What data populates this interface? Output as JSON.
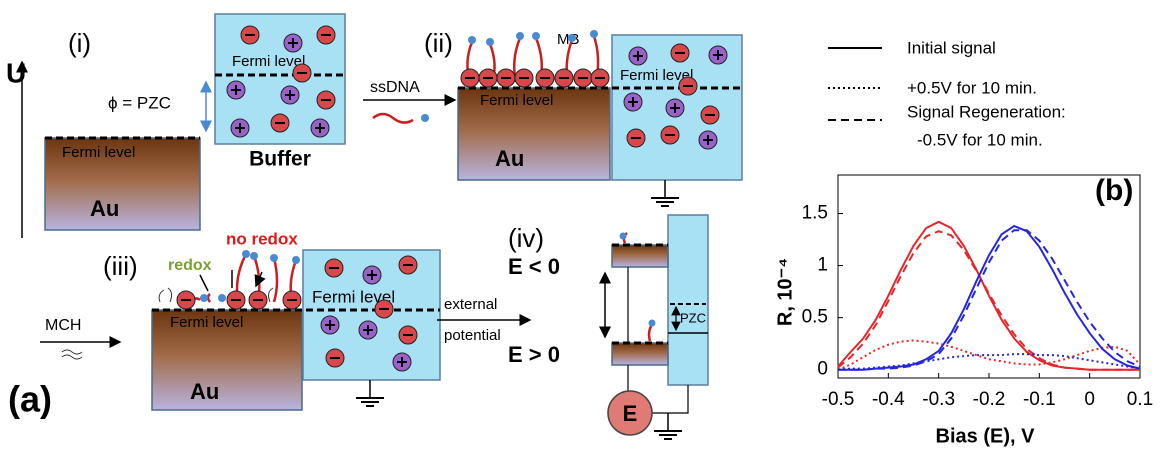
{
  "diagram": {
    "label": "(a)",
    "axis": "U",
    "step_i": {
      "label": "(i)",
      "metal": "Au",
      "metal_fermi": "Fermi level",
      "buffer": "Buffer",
      "buffer_fermi": "Fermi level",
      "gap": "ϕ = PZC"
    },
    "arrow_1": "ssDNA",
    "step_ii": {
      "label": "(ii)",
      "probe": "MB",
      "metal": "Au",
      "metal_fermi": "Fermi level",
      "buffer_fermi": "Fermi level"
    },
    "arrow_2": "MCH",
    "step_iii": {
      "label": "(iii)",
      "redox": "redox",
      "no_redox": "no redox",
      "metal": "Au",
      "metal_fermi": "Fermi level",
      "buffer_fermi": "Fermi level"
    },
    "arrow_3": [
      "external",
      "potential"
    ],
    "step_iv": {
      "label": "(iv)",
      "negative": "E < 0",
      "positive": "E > 0",
      "gap": "PZC",
      "source": "E"
    }
  },
  "chart_data": {
    "type": "line",
    "label": "(b)",
    "x_label": "Bias (E), V",
    "y_label": "R, 10⁻⁴",
    "xlim": [
      -0.5,
      0.1
    ],
    "ylim": [
      -0.08,
      1.87
    ],
    "xticks": [
      -0.5,
      -0.4,
      -0.3,
      -0.2,
      -0.1,
      0,
      0.1
    ],
    "yticks": [
      0,
      0.5,
      1,
      1.5
    ],
    "legend": [
      {
        "name": "Initial signal",
        "dash": "solid"
      },
      {
        "name": "+0.5V for 10 min.",
        "dash": "dotted"
      },
      {
        "name": [
          "Signal Regeneration:",
          "-0.5V for 10 min."
        ],
        "dash": "dashed"
      }
    ],
    "x": [
      -0.5,
      -0.475,
      -0.45,
      -0.425,
      -0.4,
      -0.375,
      -0.35,
      -0.325,
      -0.3,
      -0.275,
      -0.25,
      -0.225,
      -0.2,
      -0.175,
      -0.15,
      -0.125,
      -0.1,
      -0.075,
      -0.05,
      -0.025,
      0,
      0.025,
      0.05,
      0.075,
      0.1
    ],
    "series": [
      {
        "color": "#e8262a",
        "dash": "solid",
        "values": [
          0.03,
          0.17,
          0.3,
          0.48,
          0.71,
          0.96,
          1.19,
          1.36,
          1.42,
          1.36,
          1.19,
          0.96,
          0.71,
          0.48,
          0.3,
          0.17,
          0.09,
          0.04,
          0.02,
          0.01,
          0,
          0,
          0,
          0,
          0
        ]
      },
      {
        "color": "#e8262a",
        "dash": "dashed",
        "values": [
          0.02,
          0.12,
          0.25,
          0.43,
          0.66,
          0.9,
          1.12,
          1.28,
          1.33,
          1.29,
          1.15,
          0.95,
          0.73,
          0.52,
          0.34,
          0.2,
          0.11,
          0.05,
          0.02,
          0.01,
          0,
          0,
          0,
          0,
          0
        ]
      },
      {
        "color": "#e8262a",
        "dash": "dotted",
        "values": [
          0,
          0.05,
          0.12,
          0.19,
          0.24,
          0.27,
          0.28,
          0.27,
          0.25,
          0.22,
          0.18,
          0.14,
          0.1,
          0.08,
          0.06,
          0.05,
          0.05,
          0.07,
          0.1,
          0.14,
          0.18,
          0.21,
          0.22,
          0.18,
          0.05
        ]
      },
      {
        "color": "#2626e0",
        "dash": "solid",
        "values": [
          0,
          0,
          0,
          0.01,
          0.02,
          0.03,
          0.05,
          0.1,
          0.18,
          0.35,
          0.58,
          0.85,
          1.1,
          1.3,
          1.38,
          1.33,
          1.18,
          0.97,
          0.74,
          0.53,
          0.35,
          0.2,
          0.1,
          0.04,
          0.01
        ]
      },
      {
        "color": "#2626e0",
        "dash": "dashed",
        "values": [
          0,
          0,
          0,
          0.01,
          0.01,
          0.02,
          0.04,
          0.08,
          0.15,
          0.3,
          0.52,
          0.78,
          1.03,
          1.24,
          1.34,
          1.34,
          1.24,
          1.07,
          0.86,
          0.65,
          0.46,
          0.3,
          0.17,
          0.08,
          0.03
        ]
      },
      {
        "color": "#2626e0",
        "dash": "dotted",
        "values": [
          0,
          0.01,
          0.01,
          0.02,
          0.03,
          0.04,
          0.06,
          0.08,
          0.1,
          0.12,
          0.13,
          0.14,
          0.14,
          0.14,
          0.15,
          0.15,
          0.14,
          0.14,
          0.13,
          0.11,
          0.09,
          0.07,
          0.05,
          0.03,
          0.01
        ]
      }
    ]
  }
}
